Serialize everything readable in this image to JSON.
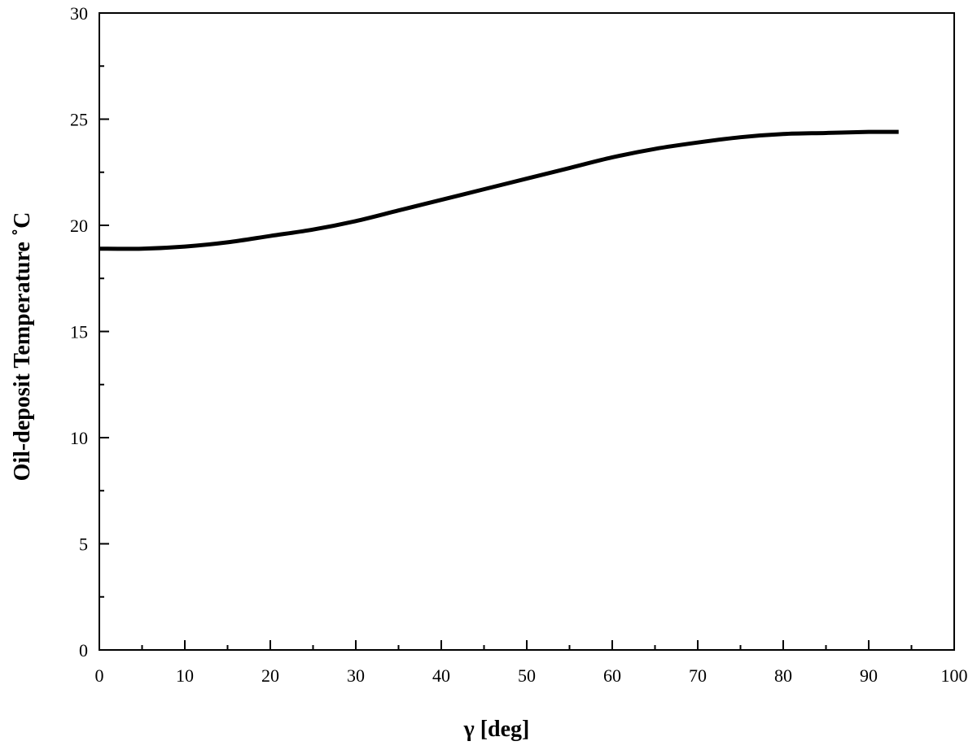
{
  "chart_data": {
    "type": "line",
    "title": "",
    "xlabel": "γ [deg]",
    "ylabel": "Oil-deposit Temperature  ˚C",
    "xlim": [
      0,
      100
    ],
    "ylim": [
      0,
      30
    ],
    "x_ticks": [
      0,
      10,
      20,
      30,
      40,
      50,
      60,
      70,
      80,
      90,
      100
    ],
    "y_ticks": [
      0,
      5,
      10,
      15,
      20,
      25,
      30
    ],
    "grid": false,
    "legend": "none",
    "series": [
      {
        "color": "#000000",
        "x": [
          0,
          5,
          10,
          15,
          20,
          25,
          30,
          35,
          40,
          45,
          50,
          55,
          60,
          65,
          70,
          75,
          80,
          85,
          90,
          93.5
        ],
        "y": [
          18.9,
          18.9,
          19.0,
          19.2,
          19.5,
          19.8,
          20.2,
          20.7,
          21.2,
          21.7,
          22.2,
          22.7,
          23.2,
          23.6,
          23.9,
          24.15,
          24.3,
          24.35,
          24.4,
          24.4
        ]
      }
    ]
  }
}
